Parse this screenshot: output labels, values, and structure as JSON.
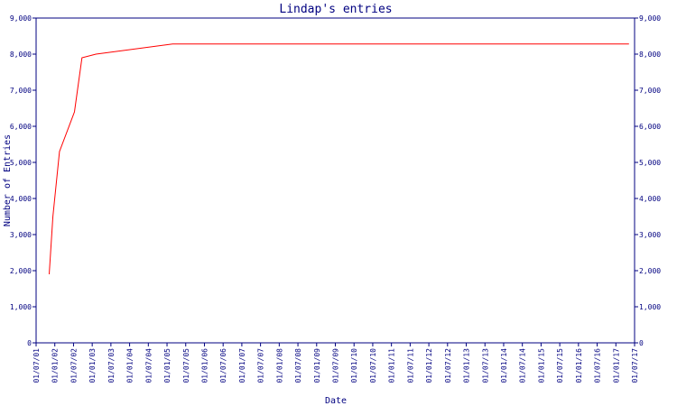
{
  "chart_data": {
    "type": "line",
    "title": "Lindap's entries",
    "xlabel": "Date",
    "ylabel": "Number of Entries",
    "ylim": [
      0,
      9000
    ],
    "yticks": [
      "0",
      "1,000",
      "2,000",
      "3,000",
      "4,000",
      "5,000",
      "6,000",
      "7,000",
      "8,000",
      "9,000"
    ],
    "categories": [
      "01/07/01",
      "01/01/02",
      "01/07/02",
      "01/01/03",
      "01/07/03",
      "01/01/04",
      "01/07/04",
      "01/01/05",
      "01/07/05",
      "01/01/06",
      "01/07/06",
      "01/01/07",
      "01/07/07",
      "01/01/08",
      "01/07/08",
      "01/01/09",
      "01/07/09",
      "01/01/10",
      "01/07/10",
      "01/01/11",
      "01/07/11",
      "01/01/12",
      "01/07/12",
      "01/01/13",
      "01/07/13",
      "01/01/14",
      "01/07/14",
      "01/01/15",
      "01/07/15",
      "01/01/16",
      "01/07/16",
      "01/01/17",
      "01/07/17"
    ],
    "grid": false,
    "colors": {
      "line": "#ff0000",
      "frame": "#000080",
      "text": "#000080"
    },
    "series": [
      {
        "x": [
          0.7,
          0.9,
          1.25,
          2.05,
          2.45,
          3.2,
          7.3,
          31.7
        ],
        "values": [
          1900,
          3500,
          5300,
          6400,
          7900,
          8000,
          8280,
          8280
        ]
      }
    ]
  }
}
